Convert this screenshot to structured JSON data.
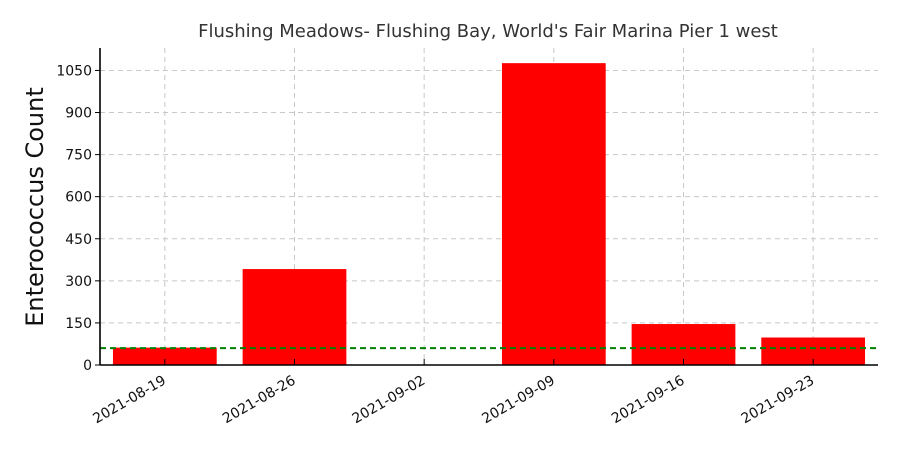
{
  "chart_data": {
    "type": "bar",
    "title": "Flushing Meadows- Flushing Bay, World's Fair Marina Pier 1 west",
    "xlabel": "",
    "ylabel": "Enterococcus Count",
    "categories": [
      "2021-08-19",
      "2021-08-26",
      "2021-09-02",
      "2021-09-09",
      "2021-09-16",
      "2021-09-23"
    ],
    "values": [
      62,
      342,
      0,
      1076,
      146,
      98
    ],
    "ylim": [
      0,
      1130
    ],
    "yticks": [
      0,
      150,
      300,
      450,
      600,
      750,
      900,
      1050
    ],
    "threshold": 60,
    "grid": true,
    "colors": {
      "bar": "#ff0000",
      "threshold": "#008000",
      "grid": "#c8c8c8"
    }
  }
}
